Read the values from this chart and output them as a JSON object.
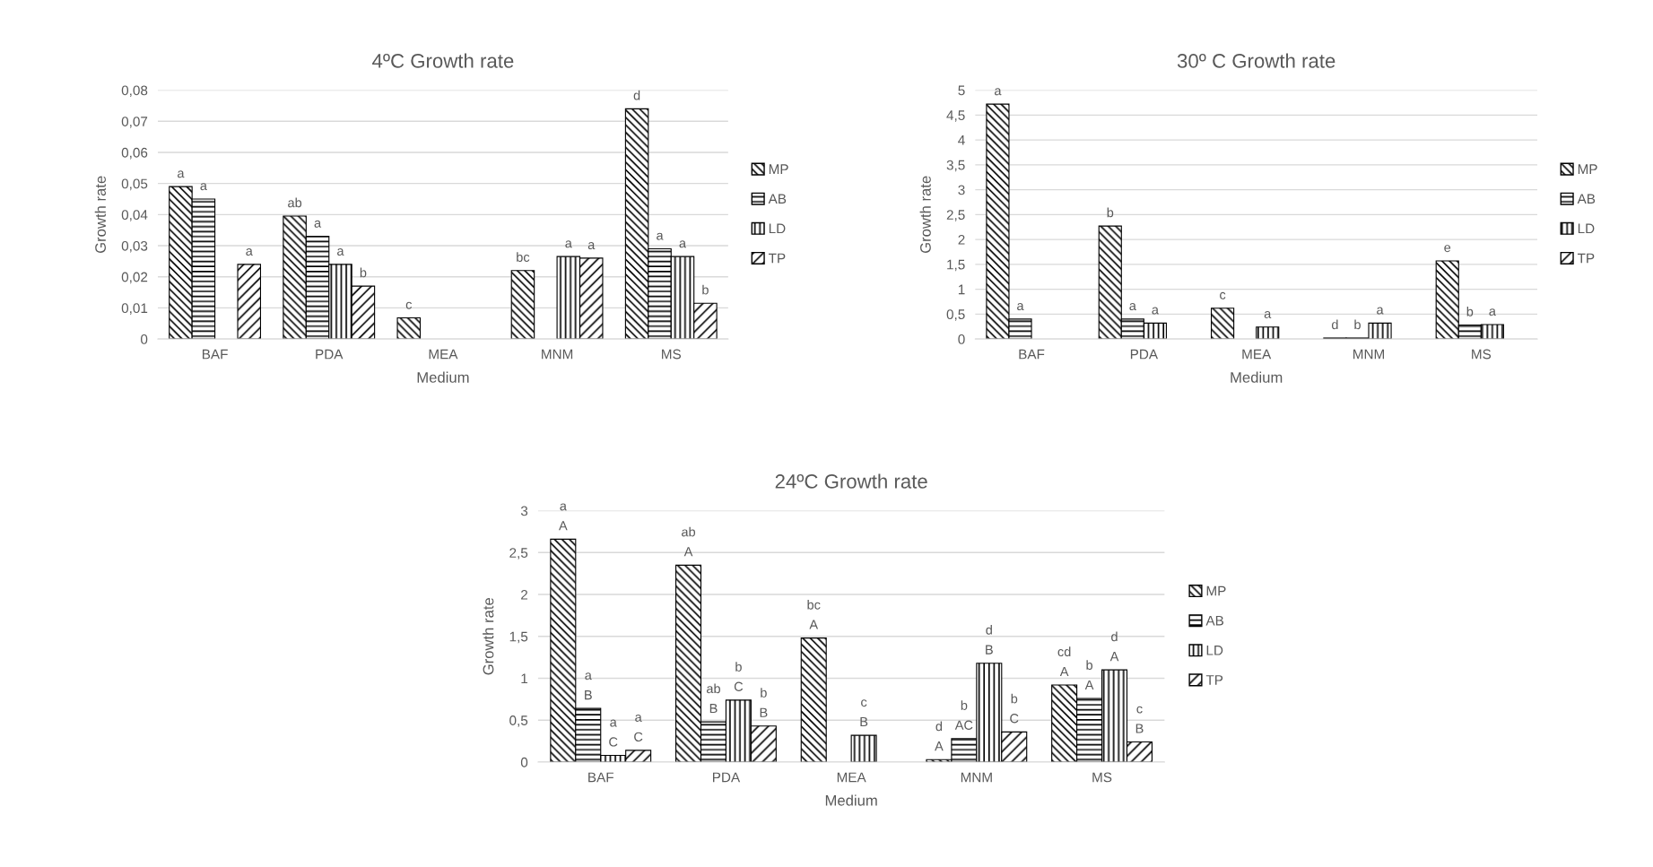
{
  "chart_data": [
    {
      "type": "bar",
      "title": "4ºC Growth rate",
      "xlabel": "Medium",
      "ylabel": "Growth rate",
      "categories": [
        "BAF",
        "PDA",
        "MEA",
        "MNM",
        "MS"
      ],
      "ylim": [
        0,
        0.08
      ],
      "yticks": [
        0,
        {
          "value": 0.01,
          "label": "0,01"
        },
        {
          "value": 0.02,
          "label": "0,02"
        },
        {
          "value": 0.03,
          "label": "0,03"
        },
        {
          "value": 0.04,
          "label": "0,04"
        },
        {
          "value": 0.05,
          "label": "0,05"
        },
        {
          "value": 0.06,
          "label": "0,06"
        },
        {
          "value": 0.07,
          "label": "0,07"
        },
        {
          "value": 0.08,
          "label": "0,08"
        }
      ],
      "grid": "y",
      "legend": "right",
      "series": [
        {
          "name": "MP",
          "color": "#000000",
          "values": [
            0.049,
            0.0395,
            0.0068,
            0.022,
            0.074
          ],
          "value_labels": [
            "a",
            "ab",
            "c",
            "bc",
            "d"
          ]
        },
        {
          "name": "AB",
          "color": "#000000",
          "values": [
            0.045,
            0.033,
            null,
            null,
            0.029
          ],
          "value_labels": [
            "a",
            "a",
            null,
            null,
            "a"
          ]
        },
        {
          "name": "LD",
          "color": "#000000",
          "values": [
            null,
            0.024,
            null,
            0.0265,
            0.0265
          ],
          "value_labels": [
            null,
            "a",
            null,
            "a",
            "a"
          ]
        },
        {
          "name": "TP",
          "color": "#000000",
          "values": [
            0.024,
            0.017,
            null,
            0.026,
            0.0115
          ],
          "value_labels": [
            "a",
            "b",
            null,
            "a",
            "b"
          ]
        }
      ]
    },
    {
      "type": "bar",
      "title": "30º C Growth rate",
      "xlabel": "Medium",
      "ylabel": "Growth rate",
      "categories": [
        "BAF",
        "PDA",
        "MEA",
        "MNM",
        "MS"
      ],
      "ylim": [
        0,
        5
      ],
      "yticks": [
        0,
        {
          "value": 0.5,
          "label": "0,5"
        },
        1,
        {
          "value": 1.5,
          "label": "1,5"
        },
        2,
        {
          "value": 2.5,
          "label": "2,5"
        },
        3,
        {
          "value": 3.5,
          "label": "3,5"
        },
        4,
        {
          "value": 4.5,
          "label": "4,5"
        },
        5
      ],
      "grid": "y",
      "legend": "right",
      "series": [
        {
          "name": "MP",
          "color": "#000000",
          "values": [
            4.72,
            2.27,
            0.62,
            0.02,
            1.57
          ],
          "value_labels": [
            "a",
            "b",
            "c",
            "d",
            "e"
          ]
        },
        {
          "name": "AB",
          "color": "#000000",
          "values": [
            0.4,
            0.4,
            null,
            0.02,
            0.28
          ],
          "value_labels": [
            "a",
            "a",
            null,
            "b",
            "b"
          ]
        },
        {
          "name": "LD",
          "color": "#000000",
          "values": [
            null,
            0.32,
            0.24,
            0.32,
            0.29
          ],
          "value_labels": [
            null,
            "a",
            "a",
            "a",
            "a"
          ]
        },
        {
          "name": "TP",
          "color": "#000000",
          "values": [
            null,
            null,
            null,
            null,
            null
          ],
          "value_labels": [
            null,
            null,
            null,
            null,
            null
          ]
        }
      ]
    },
    {
      "type": "bar",
      "title": "24ºC Growth rate",
      "xlabel": "Medium",
      "ylabel": "Growth rate",
      "categories": [
        "BAF",
        "PDA",
        "MEA",
        "MNM",
        "MS"
      ],
      "ylim": [
        0,
        3
      ],
      "yticks": [
        0,
        {
          "value": 0.5,
          "label": "0,5"
        },
        1,
        {
          "value": 1.5,
          "label": "1,5"
        },
        2,
        {
          "value": 2.5,
          "label": "2,5"
        },
        3
      ],
      "grid": "y",
      "legend": "right",
      "series": [
        {
          "name": "MP",
          "color": "#000000",
          "values": [
            2.66,
            2.35,
            1.48,
            0.03,
            0.92
          ],
          "value_labels": [
            "a\nA",
            "ab\nA",
            "bc\nA",
            "d\nA",
            "cd\nA"
          ]
        },
        {
          "name": "AB",
          "color": "#000000",
          "values": [
            0.64,
            0.48,
            null,
            0.28,
            0.76
          ],
          "value_labels": [
            "a\nB",
            "ab\nB",
            null,
            "b\nAC",
            "b\nA"
          ]
        },
        {
          "name": "LD",
          "color": "#000000",
          "values": [
            0.08,
            0.74,
            0.32,
            1.18,
            1.1
          ],
          "value_labels": [
            "a\nC",
            "b\nC",
            "c\nB",
            "d\nB",
            "d\nA"
          ]
        },
        {
          "name": "TP",
          "color": "#000000",
          "values": [
            0.14,
            0.43,
            null,
            0.36,
            0.24
          ],
          "value_labels": [
            "a\nC",
            "b\nB",
            null,
            "b\nC",
            "c\nB"
          ]
        }
      ]
    }
  ]
}
